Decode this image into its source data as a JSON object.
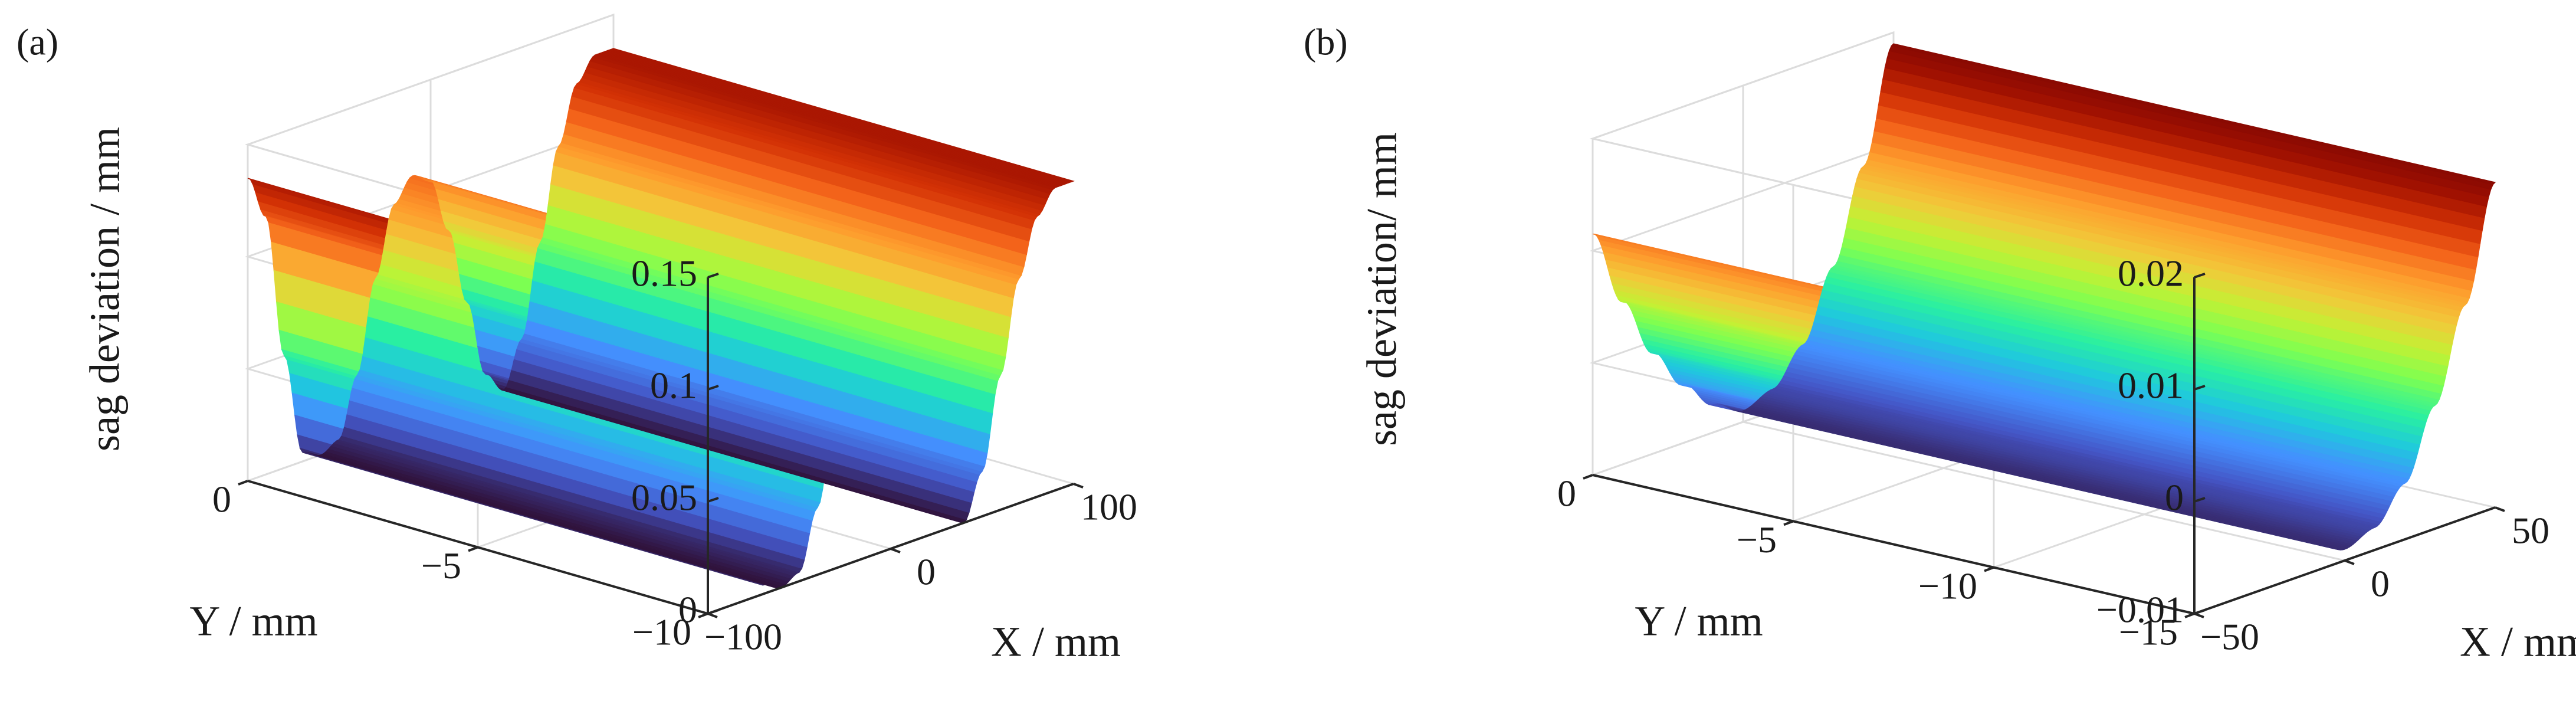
{
  "colormap": [
    "#30123b",
    "#4454c4",
    "#4490fe",
    "#1fc8de",
    "#29efa2",
    "#7cff52",
    "#c3f134",
    "#f2c93a",
    "#fe9b2d",
    "#f3631a",
    "#d23105",
    "#a01101",
    "#7a0403"
  ],
  "chart_data": [
    {
      "panel": "(a)",
      "type": "surface",
      "zlabel": "sag deviation / mm",
      "xlabel": "X / mm",
      "ylabel": "Y / mm",
      "xlim": [
        -100,
        100
      ],
      "ylim": [
        -10,
        0
      ],
      "zlim": [
        0,
        0.15
      ],
      "xticks": [
        "−100",
        "0",
        "100"
      ],
      "yticks": [
        "0",
        "−5",
        "−10"
      ],
      "zticks": [
        "0",
        "0.05",
        "0.1",
        "0.15"
      ],
      "profile_x": [
        -100,
        -90,
        -80,
        -70,
        -60,
        -50,
        -40,
        -30,
        -20,
        -10,
        0,
        10,
        20,
        30,
        40,
        50,
        60,
        70,
        80,
        90,
        100
      ],
      "profile_z": [
        0.135,
        0.115,
        0.05,
        0.004,
        0.0,
        0.004,
        0.03,
        0.07,
        0.1,
        0.11,
        0.105,
        0.08,
        0.045,
        0.01,
        0.0,
        0.02,
        0.06,
        0.1,
        0.125,
        0.135,
        0.135
      ]
    },
    {
      "panel": "(b)",
      "type": "surface",
      "zlabel": "sag deviation/ mm",
      "xlabel": "X / mm",
      "ylabel": "Y / mm",
      "xlim": [
        -50,
        50
      ],
      "ylim": [
        -15,
        0
      ],
      "zlim": [
        -0.01,
        0.02
      ],
      "xticks": [
        "−50",
        "0",
        "50"
      ],
      "yticks": [
        "0",
        "−5",
        "−10",
        "−15"
      ],
      "zticks": [
        "−0.01",
        "0",
        "0.01",
        "0.02"
      ],
      "profile_x": [
        -50,
        -40,
        -30,
        -20,
        -10,
        0,
        10,
        20,
        30,
        40,
        50
      ],
      "profile_z": [
        0.0115,
        0.0045,
        -0.001,
        -0.0048,
        -0.0075,
        -0.009,
        -0.008,
        -0.005,
        0.001,
        0.009,
        0.019
      ]
    }
  ]
}
